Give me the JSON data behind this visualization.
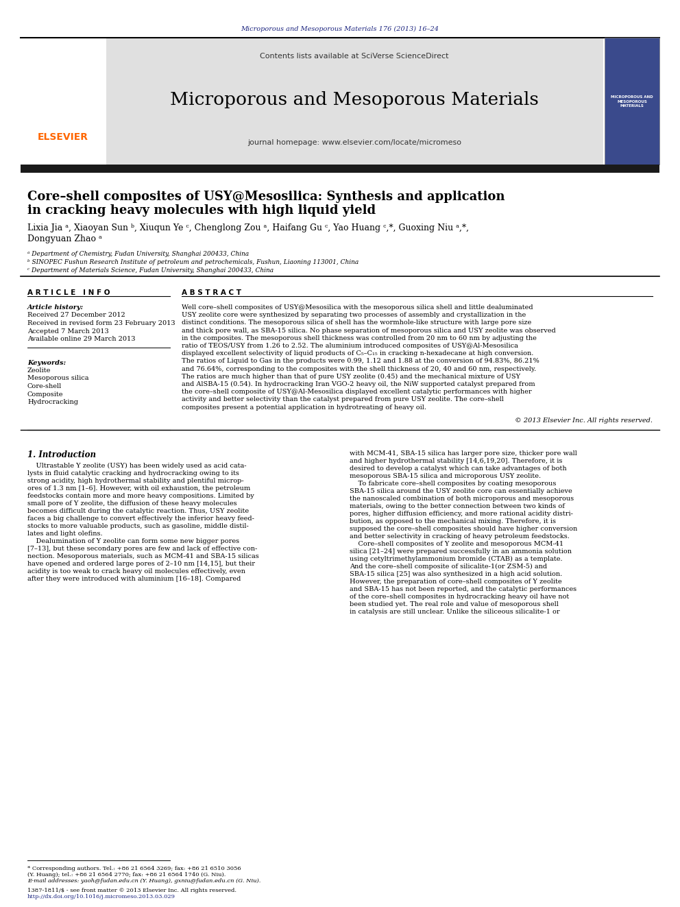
{
  "page_bg": "#ffffff",
  "top_journal_ref": "Microporous and Mesoporous Materials 176 (2013) 16–24",
  "journal_name": "Microporous and Mesoporous Materials",
  "journal_homepage": "journal homepage: www.elsevier.com/locate/micromeso",
  "contents_line": "Contents lists available at SciVerse ScienceDirect",
  "header_bg": "#e0e0e0",
  "dark_bar_color": "#1a1a1a",
  "title_line1": "Core–shell composites of USY@Mesosilica: Synthesis and application",
  "title_line2": "in cracking heavy molecules with high liquid yield",
  "authors_line1": "Lixia Jia ᵃ, Xiaoyan Sun ᵇ, Xiuqun Ye ᶜ, Chenglong Zou ᵃ, Haifang Gu ᶜ, Yao Huang ᶜ,*, Guoxing Niu ᵃ,*,",
  "authors_line2": "Dongyuan Zhao ᵃ",
  "affil_a": "ᵃ Department of Chemistry, Fudan University, Shanghai 200433, China",
  "affil_b": "ᵇ SINOPEC Fushun Research Institute of petroleum and petrochemicals, Fushun, Liaoning 113001, China",
  "affil_c": "ᶜ Department of Materials Science, Fudan University, Shanghai 200433, China",
  "article_info_label": "A R T I C L E   I N F O",
  "abstract_label": "A B S T R A C T",
  "article_history_label": "Article history:",
  "received1": "Received 27 December 2012",
  "received2": "Received in revised form 23 February 2013",
  "accepted": "Accepted 7 March 2013",
  "available": "Available online 29 March 2013",
  "keywords_label": "Keywords:",
  "keywords": [
    "Zeolite",
    "Mesoporous silica",
    "Core-shell",
    "Composite",
    "Hydrocracking"
  ],
  "abstract_lines": [
    "Well core–shell composites of USY@Mesosilica with the mesoporous silica shell and little dealuminated",
    "USY zeolite core were synthesized by separating two processes of assembly and crystallization in the",
    "distinct conditions. The mesoporous silica of shell has the wormhole-like structure with large pore size",
    "and thick pore wall, as SBA-15 silica. No phase separation of mesoporous silica and USY zeolite was observed",
    "in the composites. The mesoporous shell thickness was controlled from 20 nm to 60 nm by adjusting the",
    "ratio of TEOS/USY from 1.26 to 2.52. The aluminium introduced composites of USY@Al-Mesosilica",
    "displayed excellent selectivity of liquid products of C₅–C₁₅ in cracking n-hexadecane at high conversion.",
    "The ratios of Liquid to Gas in the products were 0.99, 1.12 and 1.88 at the conversion of 94.83%, 86.21%",
    "and 76.64%, corresponding to the composites with the shell thickness of 20, 40 and 60 nm, respectively.",
    "The ratios are much higher than that of pure USY zeolite (0.45) and the mechanical mixture of USY",
    "and AlSBA-15 (0.54). In hydrocracking Iran VGO-2 heavy oil, the NiW supported catalyst prepared from",
    "the core–shell composite of USY@Al-Mesosilica displayed excellent catalytic performances with higher",
    "activity and better selectivity than the catalyst prepared from pure USY zeolite. The core–shell",
    "composites present a potential application in hydrotreating of heavy oil."
  ],
  "copyright": "© 2013 Elsevier Inc. All rights reserved.",
  "intro_title": "1. Introduction",
  "intro_col1_lines": [
    "    Ultrastable Y zeolite (USY) has been widely used as acid cata-",
    "lysts in fluid catalytic cracking and hydrocracking owing to its",
    "strong acidity, high hydrothermal stability and plentiful microp-",
    "ores of 1.3 nm [1–6]. However, with oil exhaustion, the petroleum",
    "feedstocks contain more and more heavy compositions. Limited by",
    "small pore of Y zeolite, the diffusion of these heavy molecules",
    "becomes difficult during the catalytic reaction. Thus, USY zeolite",
    "faces a big challenge to convert effectively the inferior heavy feed-",
    "stocks to more valuable products, such as gasoline, middle distil-",
    "lates and light olefins.",
    "    Dealumination of Y zeolite can form some new bigger pores",
    "[7–13], but these secondary pores are few and lack of effective con-",
    "nection. Mesoporous materials, such as MCM-41 and SBA-15 silicas",
    "have opened and ordered large pores of 2–10 nm [14,15], but their",
    "acidity is too weak to crack heavy oil molecules effectively, even",
    "after they were introduced with aluminium [16–18]. Compared"
  ],
  "intro_col2_lines": [
    "with MCM-41, SBA-15 silica has larger pore size, thicker pore wall",
    "and higher hydrothermal stability [14,6,19,20]. Therefore, it is",
    "desired to develop a catalyst which can take advantages of both",
    "mesoporous SBA-15 silica and microporous USY zeolite.",
    "    To fabricate core–shell composites by coating mesoporous",
    "SBA-15 silica around the USY zeolite core can essentially achieve",
    "the nanoscaled combination of both microporous and mesoporous",
    "materials, owing to the better connection between two kinds of",
    "pores, higher diffusion efficiency, and more rational acidity distri-",
    "bution, as opposed to the mechanical mixing. Therefore, it is",
    "supposed the core–shell composites should have higher conversion",
    "and better selectivity in cracking of heavy petroleum feedstocks.",
    "    Core–shell composites of Y zeolite and mesoporous MCM-41",
    "silica [21–24] were prepared successfully in an ammonia solution",
    "using cetyltrimethylammonium bromide (CTAB) as a template.",
    "And the core–shell composite of silicalite-1(or ZSM-5) and",
    "SBA-15 silica [25] was also synthesized in a high acid solution.",
    "However, the preparation of core–shell composites of Y zeolite",
    "and SBA-15 has not been reported, and the catalytic performances",
    "of the core–shell composites in hydrocracking heavy oil have not",
    "been studied yet. The real role and value of mesoporous shell",
    "in catalysis are still unclear. Unlike the siliceous silicalite-1 or"
  ],
  "footer_star": "* Corresponding authors. Tel.: +86 21 6564 3269; fax: +86 21 6510 3056",
  "footer_huang": "(Y. Huang); tel.: +86 21 6564 2770; fax: +86 21 6564 1740 (G. Niu).",
  "footer_email": "E-mail addresses: yaoh@fudan.edu.cn (Y. Huang), gxniu@fudan.edu.cn (G. Niu).",
  "footer_issn": "1387-1811/$ - see front matter © 2013 Elsevier Inc. All rights reserved.",
  "footer_doi": "http://dx.doi.org/10.1016/j.micromeso.2013.03.029",
  "link_color": "#1a237e",
  "elsevier_color": "#FF6600",
  "blue_link": "#1565C0"
}
